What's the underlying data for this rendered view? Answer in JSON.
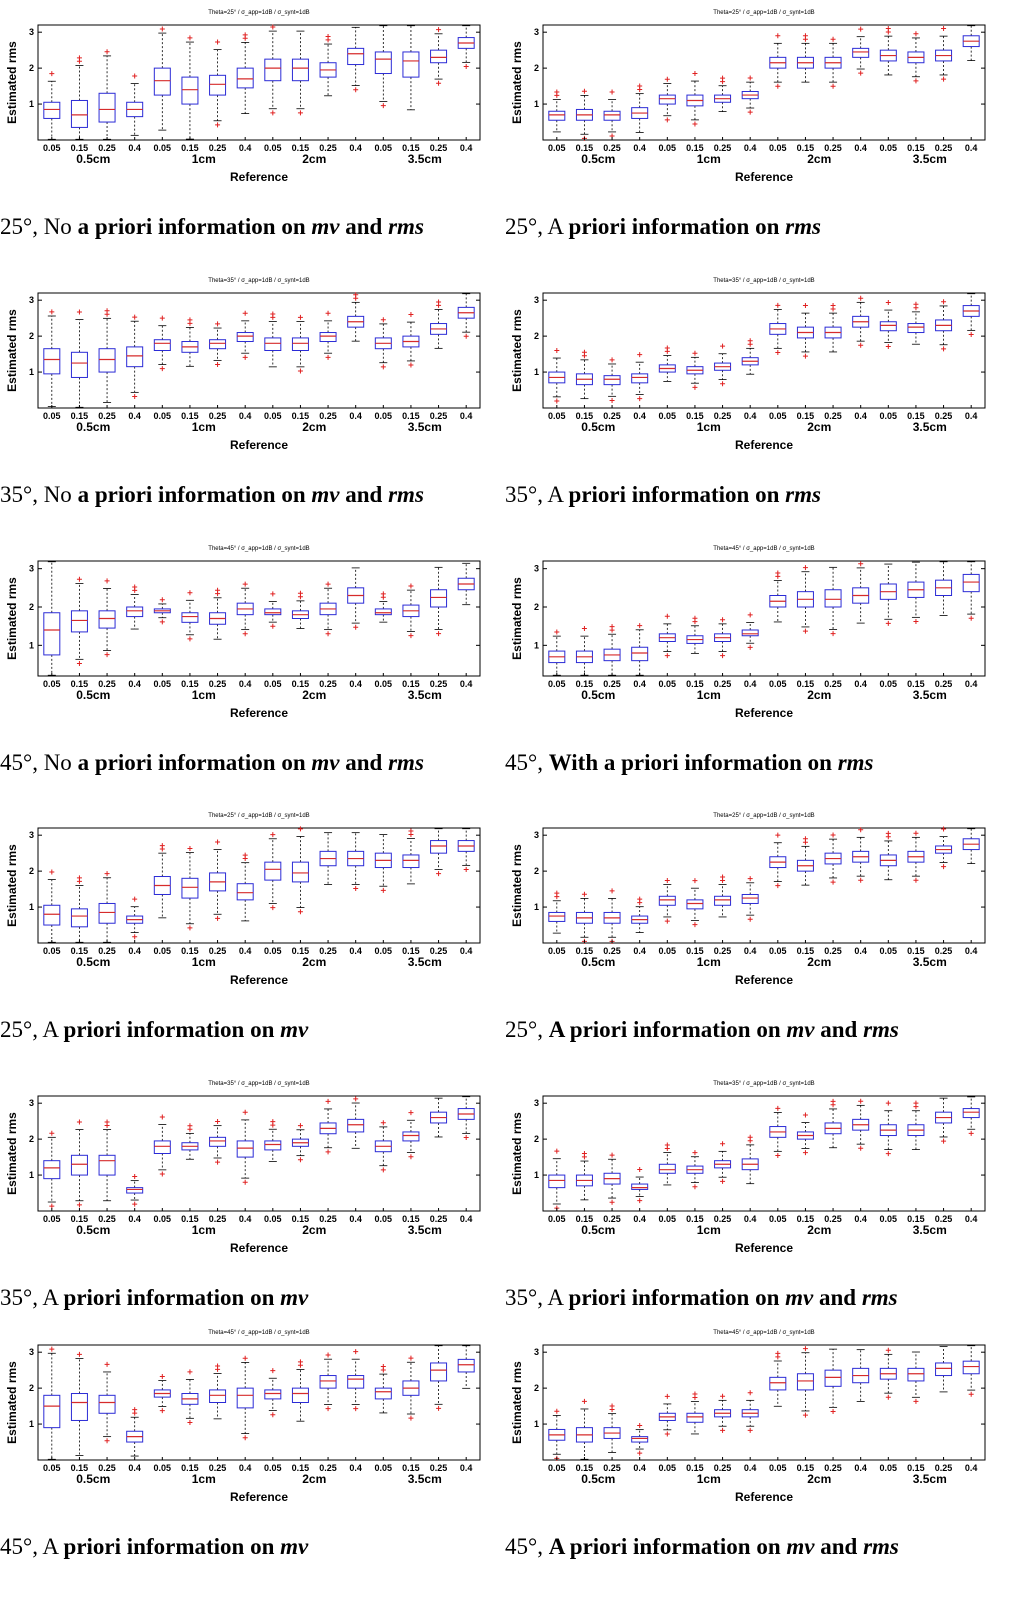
{
  "chart_data": [
    {
      "type": "box",
      "title": "Theta=25° / σ_app=1dB / σ_synt=1dB",
      "xlabel": "Reference",
      "ylabel": "Estimated rms",
      "ylim": [
        0,
        3.2
      ],
      "yticks": [
        1,
        2,
        3
      ],
      "tick_labels": [
        "0.05",
        "0.15",
        "0.25",
        "0.4",
        "0.05",
        "0.15",
        "0.25",
        "0.4",
        "0.05",
        "0.15",
        "0.25",
        "0.4",
        "0.05",
        "0.15",
        "0.25",
        "0.4"
      ],
      "groups": [
        "0.5cm",
        "1cm",
        "2cm",
        "3.5cm"
      ],
      "medians": [
        0.85,
        0.7,
        0.85,
        0.85,
        1.65,
        1.4,
        1.55,
        1.7,
        2.0,
        2.0,
        1.95,
        2.4,
        2.25,
        2.2,
        2.3,
        2.7
      ],
      "q1": [
        0.6,
        0.35,
        0.5,
        0.65,
        1.25,
        1.0,
        1.25,
        1.45,
        1.65,
        1.65,
        1.75,
        2.1,
        1.85,
        1.75,
        2.15,
        2.55
      ],
      "q3": [
        1.05,
        1.1,
        1.3,
        1.05,
        2.0,
        1.75,
        1.8,
        2.0,
        2.25,
        2.25,
        2.15,
        2.55,
        2.45,
        2.45,
        2.5,
        2.85
      ],
      "caption": {
        "a": "25°, No ",
        "b": "a priori information on ",
        "c": "mv",
        "d": " and ",
        "e": "rms"
      }
    },
    {
      "type": "box",
      "title": "Theta=25° / σ_app=1dB / σ_synt=1dB",
      "xlabel": "Reference",
      "ylabel": "Estimated rms",
      "ylim": [
        0,
        3.2
      ],
      "yticks": [
        1,
        2,
        3
      ],
      "tick_labels": [
        "0.05",
        "0.15",
        "0.25",
        "0.4",
        "0.05",
        "0.15",
        "0.25",
        "0.4",
        "0.05",
        "0.15",
        "0.25",
        "0.4",
        "0.05",
        "0.15",
        "0.25",
        "0.4"
      ],
      "groups": [
        "0.5cm",
        "1cm",
        "2cm",
        "3.5cm"
      ],
      "medians": [
        0.7,
        0.7,
        0.7,
        0.75,
        1.15,
        1.1,
        1.15,
        1.25,
        2.15,
        2.15,
        2.15,
        2.45,
        2.35,
        2.3,
        2.35,
        2.75
      ],
      "q1": [
        0.55,
        0.55,
        0.55,
        0.6,
        1.0,
        0.95,
        1.05,
        1.15,
        2.0,
        2.0,
        2.0,
        2.3,
        2.2,
        2.15,
        2.2,
        2.6
      ],
      "q3": [
        0.8,
        0.85,
        0.8,
        0.9,
        1.25,
        1.25,
        1.25,
        1.35,
        2.3,
        2.3,
        2.3,
        2.55,
        2.5,
        2.45,
        2.5,
        2.9
      ],
      "caption": {
        "a": "25°, A ",
        "b": "priori information on ",
        "c": "rms",
        "d": "",
        "e": ""
      }
    },
    {
      "type": "box",
      "title": "Theta=35° / σ_app=1dB / σ_synt=1dB",
      "xlabel": "Reference",
      "ylabel": "Estimated rms",
      "ylim": [
        0,
        3.2
      ],
      "yticks": [
        1,
        2,
        3
      ],
      "tick_labels": [
        "0.05",
        "0.15",
        "0.25",
        "0.4",
        "0.05",
        "0.15",
        "0.25",
        "0.4",
        "0.05",
        "0.15",
        "0.25",
        "0.4",
        "0.05",
        "0.15",
        "0.25",
        "0.4"
      ],
      "groups": [
        "0.5cm",
        "1cm",
        "2cm",
        "3.5cm"
      ],
      "medians": [
        1.35,
        1.25,
        1.35,
        1.45,
        1.8,
        1.7,
        1.8,
        2.0,
        1.8,
        1.8,
        2.0,
        2.4,
        1.8,
        1.85,
        2.2,
        2.65
      ],
      "q1": [
        0.95,
        0.85,
        1.0,
        1.15,
        1.6,
        1.55,
        1.65,
        1.85,
        1.6,
        1.6,
        1.85,
        2.25,
        1.65,
        1.7,
        2.05,
        2.5
      ],
      "q3": [
        1.65,
        1.55,
        1.65,
        1.7,
        1.9,
        1.85,
        1.9,
        2.1,
        1.95,
        1.95,
        2.1,
        2.55,
        1.95,
        2.0,
        2.35,
        2.8
      ],
      "caption": {
        "a": "35°, No ",
        "b": "a priori information on ",
        "c": "mv",
        "d": " and ",
        "e": "rms"
      }
    },
    {
      "type": "box",
      "title": "Theta=35° / σ_app=1dB / σ_synt=1dB",
      "xlabel": "Reference",
      "ylabel": "Estimated rms",
      "ylim": [
        0,
        3.2
      ],
      "yticks": [
        1,
        2,
        3
      ],
      "tick_labels": [
        "0.05",
        "0.15",
        "0.25",
        "0.4",
        "0.05",
        "0.15",
        "0.25",
        "0.4",
        "0.05",
        "0.15",
        "0.25",
        "0.4",
        "0.05",
        "0.15",
        "0.25",
        "0.4"
      ],
      "groups": [
        "0.5cm",
        "1cm",
        "2cm",
        "3.5cm"
      ],
      "medians": [
        0.85,
        0.8,
        0.8,
        0.85,
        1.1,
        1.05,
        1.15,
        1.3,
        2.2,
        2.1,
        2.1,
        2.4,
        2.3,
        2.25,
        2.3,
        2.7
      ],
      "q1": [
        0.7,
        0.65,
        0.65,
        0.7,
        1.0,
        0.95,
        1.05,
        1.2,
        2.05,
        1.95,
        1.95,
        2.25,
        2.15,
        2.1,
        2.15,
        2.55
      ],
      "q3": [
        1.0,
        0.95,
        0.9,
        0.95,
        1.2,
        1.15,
        1.25,
        1.4,
        2.35,
        2.25,
        2.25,
        2.55,
        2.4,
        2.35,
        2.45,
        2.85
      ],
      "caption": {
        "a": "35°, A ",
        "b": "priori information on ",
        "c": "rms",
        "d": "",
        "e": ""
      }
    },
    {
      "type": "box",
      "title": "Theta=45° / σ_app=1dB / σ_synt=1dB",
      "xlabel": "Reference",
      "ylabel": "Estimated rms",
      "ylim": [
        0.2,
        3.2
      ],
      "yticks": [
        1,
        2,
        3
      ],
      "tick_labels": [
        "0.05",
        "0.15",
        "0.25",
        "0.4",
        "0.05",
        "0.15",
        "0.25",
        "0.4",
        "0.05",
        "0.15",
        "0.25",
        "0.4",
        "0.05",
        "0.15",
        "0.25",
        "0.4"
      ],
      "groups": [
        "0.5cm",
        "1cm",
        "2cm",
        "3.5cm"
      ],
      "medians": [
        1.4,
        1.65,
        1.7,
        1.9,
        1.9,
        1.75,
        1.7,
        1.95,
        1.85,
        1.8,
        1.95,
        2.3,
        1.85,
        1.9,
        2.25,
        2.6
      ],
      "q1": [
        0.75,
        1.35,
        1.45,
        1.75,
        1.85,
        1.6,
        1.55,
        1.8,
        1.8,
        1.7,
        1.8,
        2.1,
        1.8,
        1.75,
        2.0,
        2.45
      ],
      "q3": [
        1.85,
        1.9,
        1.9,
        2.0,
        1.95,
        1.85,
        1.85,
        2.1,
        1.95,
        1.9,
        2.1,
        2.5,
        1.95,
        2.05,
        2.45,
        2.75
      ],
      "caption": {
        "a": "45°, No ",
        "b": "a priori information on ",
        "c": "mv",
        "d": " and ",
        "e": "rms"
      }
    },
    {
      "type": "box",
      "title": "Theta=45° / σ_app=1dB / σ_synt=1dB",
      "xlabel": "Reference",
      "ylabel": "Estimated rms",
      "ylim": [
        0.2,
        3.2
      ],
      "yticks": [
        1,
        2,
        3
      ],
      "tick_labels": [
        "0.05",
        "0.15",
        "0.25",
        "0.4",
        "0.05",
        "0.15",
        "0.25",
        "0.4",
        "0.05",
        "0.15",
        "0.25",
        "0.4",
        "0.05",
        "0.15",
        "0.25",
        "0.4"
      ],
      "groups": [
        "0.5cm",
        "1cm",
        "2cm",
        "3.5cm"
      ],
      "medians": [
        0.7,
        0.7,
        0.75,
        0.8,
        1.2,
        1.15,
        1.2,
        1.3,
        2.15,
        2.2,
        2.2,
        2.3,
        2.4,
        2.45,
        2.5,
        2.65
      ],
      "q1": [
        0.55,
        0.55,
        0.6,
        0.6,
        1.1,
        1.05,
        1.1,
        1.25,
        2.0,
        2.0,
        2.0,
        2.1,
        2.2,
        2.25,
        2.3,
        2.4
      ],
      "q3": [
        0.85,
        0.85,
        0.9,
        0.95,
        1.3,
        1.25,
        1.3,
        1.4,
        2.3,
        2.4,
        2.45,
        2.5,
        2.6,
        2.65,
        2.7,
        2.85
      ],
      "caption": {
        "a": "45°, ",
        "b": "With a priori information on ",
        "c": "rms",
        "d": "",
        "e": ""
      }
    },
    {
      "type": "box",
      "title": "Theta=25° / σ_app=1dB / σ_synt=1dB",
      "xlabel": "Reference",
      "ylabel": "Estimated rms",
      "ylim": [
        0,
        3.2
      ],
      "yticks": [
        1,
        2,
        3
      ],
      "tick_labels": [
        "0.05",
        "0.15",
        "0.25",
        "0.4",
        "0.05",
        "0.15",
        "0.25",
        "0.4",
        "0.05",
        "0.15",
        "0.25",
        "0.4",
        "0.05",
        "0.15",
        "0.25",
        "0.4"
      ],
      "groups": [
        "0.5cm",
        "1cm",
        "2cm",
        "3.5cm"
      ],
      "medians": [
        0.8,
        0.75,
        0.85,
        0.65,
        1.6,
        1.55,
        1.7,
        1.4,
        2.05,
        1.95,
        2.35,
        2.35,
        2.3,
        2.3,
        2.7,
        2.7
      ],
      "q1": [
        0.5,
        0.45,
        0.55,
        0.55,
        1.35,
        1.25,
        1.45,
        1.2,
        1.75,
        1.7,
        2.15,
        2.15,
        2.1,
        2.1,
        2.5,
        2.55
      ],
      "q3": [
        1.05,
        0.95,
        1.1,
        0.75,
        1.85,
        1.8,
        1.95,
        1.65,
        2.25,
        2.25,
        2.55,
        2.55,
        2.5,
        2.45,
        2.85,
        2.85
      ],
      "caption": {
        "a": "25°, A ",
        "b": "priori information on ",
        "c": "mv",
        "d": "",
        "e": ""
      }
    },
    {
      "type": "box",
      "title": "Theta=25° / σ_app=1dB / σ_synt=1dB",
      "xlabel": "Reference",
      "ylabel": "Estimated rms",
      "ylim": [
        0,
        3.2
      ],
      "yticks": [
        1,
        2,
        3
      ],
      "tick_labels": [
        "0.05",
        "0.15",
        "0.25",
        "0.4",
        "0.05",
        "0.15",
        "0.25",
        "0.4",
        "0.05",
        "0.15",
        "0.25",
        "0.4",
        "0.05",
        "0.15",
        "0.25",
        "0.4"
      ],
      "groups": [
        "0.5cm",
        "1cm",
        "2cm",
        "3.5cm"
      ],
      "medians": [
        0.75,
        0.7,
        0.7,
        0.65,
        1.2,
        1.1,
        1.2,
        1.25,
        2.25,
        2.15,
        2.35,
        2.4,
        2.3,
        2.4,
        2.6,
        2.75
      ],
      "q1": [
        0.6,
        0.55,
        0.55,
        0.55,
        1.05,
        0.95,
        1.05,
        1.1,
        2.1,
        2.0,
        2.2,
        2.25,
        2.15,
        2.25,
        2.5,
        2.6
      ],
      "q3": [
        0.85,
        0.85,
        0.85,
        0.75,
        1.3,
        1.2,
        1.3,
        1.35,
        2.4,
        2.3,
        2.5,
        2.55,
        2.45,
        2.55,
        2.7,
        2.9
      ],
      "caption": {
        "a": "25°, ",
        "b": "A priori information on ",
        "c": "mv",
        "d": " and ",
        "e": "rms"
      }
    },
    {
      "type": "box",
      "title": "Theta=35° / σ_app=1dB / σ_synt=1dB",
      "xlabel": "Reference",
      "ylabel": "Estimated rms",
      "ylim": [
        0,
        3.2
      ],
      "yticks": [
        1,
        2,
        3
      ],
      "tick_labels": [
        "0.05",
        "0.15",
        "0.25",
        "0.4",
        "0.05",
        "0.15",
        "0.25",
        "0.4",
        "0.05",
        "0.15",
        "0.25",
        "0.4",
        "0.05",
        "0.15",
        "0.25",
        "0.4"
      ],
      "groups": [
        "0.5cm",
        "1cm",
        "2cm",
        "3.5cm"
      ],
      "medians": [
        1.2,
        1.3,
        1.4,
        0.6,
        1.8,
        1.8,
        1.95,
        1.75,
        1.85,
        1.9,
        2.3,
        2.4,
        1.8,
        2.1,
        2.6,
        2.7
      ],
      "q1": [
        0.9,
        1.0,
        1.0,
        0.5,
        1.6,
        1.7,
        1.8,
        1.5,
        1.7,
        1.8,
        2.15,
        2.2,
        1.65,
        1.95,
        2.45,
        2.55
      ],
      "q3": [
        1.4,
        1.55,
        1.55,
        0.65,
        1.95,
        1.9,
        2.05,
        1.95,
        1.95,
        2.0,
        2.45,
        2.55,
        1.95,
        2.2,
        2.75,
        2.85
      ],
      "caption": {
        "a": "35°, A ",
        "b": "priori information on ",
        "c": "mv",
        "d": "",
        "e": ""
      }
    },
    {
      "type": "box",
      "title": "Theta=35° / σ_app=1dB / σ_synt=1dB",
      "xlabel": "Reference",
      "ylabel": "Estimated rms",
      "ylim": [
        0,
        3.2
      ],
      "yticks": [
        1,
        2,
        3
      ],
      "tick_labels": [
        "0.05",
        "0.15",
        "0.25",
        "0.4",
        "0.05",
        "0.15",
        "0.25",
        "0.4",
        "0.05",
        "0.15",
        "0.25",
        "0.4",
        "0.05",
        "0.15",
        "0.25",
        "0.4"
      ],
      "groups": [
        "0.5cm",
        "1cm",
        "2cm",
        "3.5cm"
      ],
      "medians": [
        0.85,
        0.85,
        0.9,
        0.65,
        1.15,
        1.15,
        1.3,
        1.3,
        2.2,
        2.1,
        2.3,
        2.4,
        2.25,
        2.25,
        2.6,
        2.75
      ],
      "q1": [
        0.65,
        0.7,
        0.75,
        0.6,
        1.05,
        1.05,
        1.2,
        1.15,
        2.05,
        2.0,
        2.15,
        2.25,
        2.1,
        2.1,
        2.45,
        2.6
      ],
      "q3": [
        1.0,
        1.0,
        1.05,
        0.75,
        1.3,
        1.25,
        1.4,
        1.45,
        2.35,
        2.2,
        2.45,
        2.55,
        2.4,
        2.4,
        2.75,
        2.85
      ],
      "caption": {
        "a": "35°, A ",
        "b": "priori information on ",
        "c": "mv",
        "d": " and ",
        "e": "rms"
      }
    },
    {
      "type": "box",
      "title": "Theta=45° / σ_app=1dB / σ_synt=1dB",
      "xlabel": "Reference",
      "ylabel": "Estimated rms",
      "ylim": [
        0,
        3.2
      ],
      "yticks": [
        1,
        2,
        3
      ],
      "tick_labels": [
        "0.05",
        "0.15",
        "0.25",
        "0.4",
        "0.05",
        "0.15",
        "0.25",
        "0.4",
        "0.05",
        "0.15",
        "0.25",
        "0.4",
        "0.05",
        "0.15",
        "0.25",
        "0.4"
      ],
      "groups": [
        "0.5cm",
        "1cm",
        "2cm",
        "3.5cm"
      ],
      "medians": [
        1.5,
        1.6,
        1.6,
        0.65,
        1.85,
        1.7,
        1.8,
        1.8,
        1.85,
        1.85,
        2.2,
        2.25,
        1.9,
        2.0,
        2.5,
        2.65
      ],
      "q1": [
        0.9,
        1.1,
        1.3,
        0.5,
        1.75,
        1.55,
        1.6,
        1.45,
        1.7,
        1.6,
        2.0,
        2.0,
        1.7,
        1.8,
        2.2,
        2.45
      ],
      "q3": [
        1.8,
        1.85,
        1.8,
        0.8,
        1.95,
        1.85,
        1.95,
        2.0,
        1.95,
        2.0,
        2.35,
        2.35,
        2.0,
        2.2,
        2.7,
        2.8
      ],
      "caption": {
        "a": "45°, A ",
        "b": "priori information on ",
        "c": "mv",
        "d": "",
        "e": ""
      }
    },
    {
      "type": "box",
      "title": "Theta=45° / σ_app=1dB / σ_synt=1dB",
      "xlabel": "Reference",
      "ylabel": "Estimated rms",
      "ylim": [
        0,
        3.2
      ],
      "yticks": [
        1,
        2,
        3
      ],
      "tick_labels": [
        "0.05",
        "0.15",
        "0.25",
        "0.4",
        "0.05",
        "0.15",
        "0.25",
        "0.4",
        "0.05",
        "0.15",
        "0.25",
        "0.4",
        "0.05",
        "0.15",
        "0.25",
        "0.4"
      ],
      "groups": [
        "0.5cm",
        "1cm",
        "2cm",
        "3.5cm"
      ],
      "medians": [
        0.7,
        0.7,
        0.75,
        0.6,
        1.2,
        1.2,
        1.3,
        1.3,
        2.15,
        2.2,
        2.3,
        2.35,
        2.4,
        2.4,
        2.55,
        2.6
      ],
      "q1": [
        0.55,
        0.5,
        0.6,
        0.5,
        1.1,
        1.05,
        1.2,
        1.2,
        1.95,
        1.95,
        2.05,
        2.15,
        2.25,
        2.2,
        2.35,
        2.4
      ],
      "q3": [
        0.85,
        0.9,
        0.9,
        0.65,
        1.3,
        1.3,
        1.4,
        1.4,
        2.3,
        2.4,
        2.5,
        2.55,
        2.55,
        2.55,
        2.7,
        2.75
      ],
      "caption": {
        "a": "45°, ",
        "b": "A priori information on ",
        "c": "mv",
        "d": " and ",
        "e": "rms"
      }
    }
  ],
  "colors": {
    "box": "#2b2bd6",
    "median": "#d62b2b",
    "outlier": "#e02020",
    "whisker": "#000000"
  }
}
